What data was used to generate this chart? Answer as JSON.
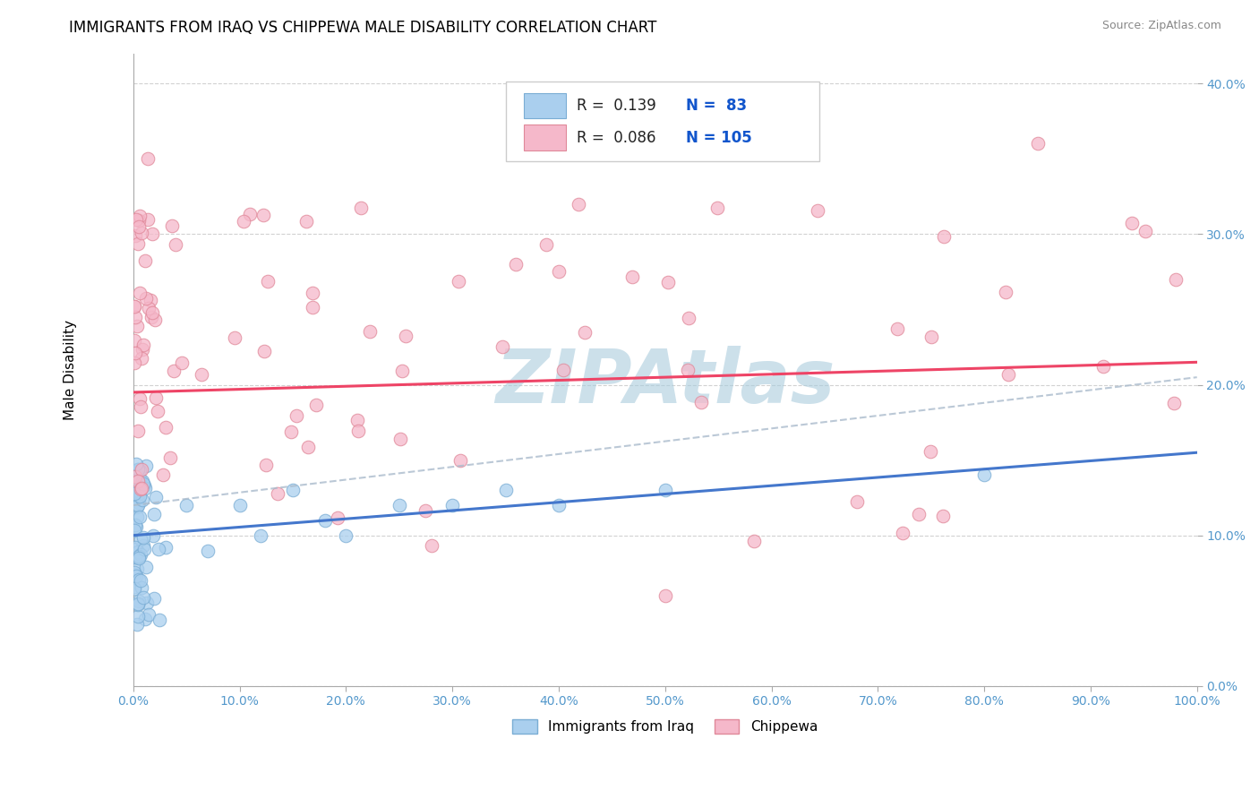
{
  "title": "IMMIGRANTS FROM IRAQ VS CHIPPEWA MALE DISABILITY CORRELATION CHART",
  "source": "Source: ZipAtlas.com",
  "ylabel": "Male Disability",
  "xlim": [
    0.0,
    1.0
  ],
  "ylim": [
    0.0,
    0.42
  ],
  "yticks": [
    0.0,
    0.1,
    0.2,
    0.3,
    0.4
  ],
  "xticks": [
    0.0,
    0.1,
    0.2,
    0.3,
    0.4,
    0.5,
    0.6,
    0.7,
    0.8,
    0.9,
    1.0
  ],
  "iraq_color": "#aacfee",
  "iraq_edge_color": "#7aadd4",
  "chippewa_color": "#f5b8ca",
  "chippewa_edge_color": "#e08899",
  "iraq_line_color": "#4477cc",
  "chippewa_line_color": "#ee4466",
  "R_iraq": 0.139,
  "N_iraq": 83,
  "R_chippewa": 0.086,
  "N_chippewa": 105,
  "legend_r_color": "#1155cc",
  "legend_label_color": "#222222",
  "watermark": "ZIPAtlas",
  "watermark_color": "#aaccdd",
  "tick_color": "#5599cc",
  "iraq_line_start": 0.1,
  "iraq_line_end": 0.155,
  "chippewa_line_start": 0.195,
  "chippewa_line_end": 0.215
}
